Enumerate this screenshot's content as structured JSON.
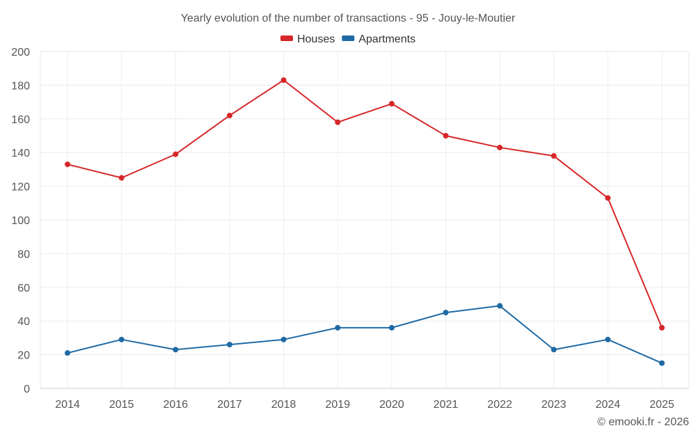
{
  "chart_data": {
    "type": "line",
    "title": "Yearly evolution of the number of transactions - 95 - Jouy-le-Moutier",
    "xlabel": "",
    "ylabel": "",
    "categories": [
      "2014",
      "2015",
      "2016",
      "2017",
      "2018",
      "2019",
      "2020",
      "2021",
      "2022",
      "2023",
      "2024",
      "2025"
    ],
    "ylim": [
      0,
      200
    ],
    "yticks": [
      0,
      20,
      40,
      60,
      80,
      100,
      120,
      140,
      160,
      180,
      200
    ],
    "grid": true,
    "legend_position": "top-center",
    "series": [
      {
        "name": "Houses",
        "color": "#d62728",
        "values": [
          133,
          125,
          139,
          162,
          183,
          158,
          169,
          150,
          143,
          138,
          113,
          36
        ]
      },
      {
        "name": "Apartments",
        "color": "#1f6aa5",
        "values": [
          21,
          29,
          23,
          26,
          29,
          36,
          36,
          45,
          49,
          23,
          29,
          15
        ]
      }
    ]
  },
  "credit": "© emooki.fr - 2026"
}
